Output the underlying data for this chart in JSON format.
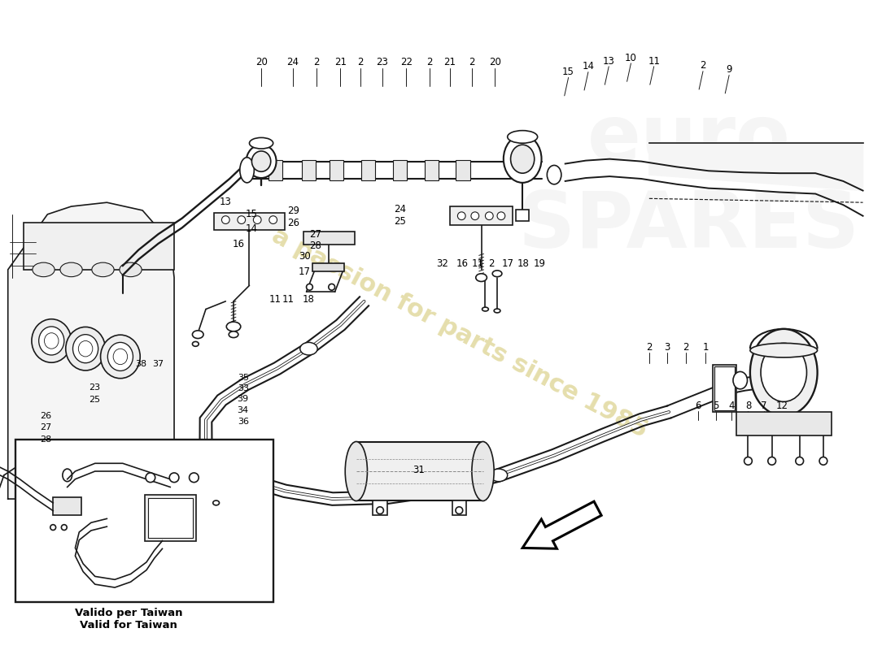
{
  "background_color": "#ffffff",
  "watermark_text": "a passion for parts since 1985",
  "watermark_color": "#d4c875",
  "inset_label_line1": "Valido per Taiwan",
  "inset_label_line2": "Valid for Taiwan",
  "line_color": "#1a1a1a",
  "label_fontsize": 8.5,
  "top_labels": [
    [
      330,
      68,
      "20"
    ],
    [
      370,
      68,
      "24"
    ],
    [
      400,
      68,
      "2"
    ],
    [
      430,
      68,
      "21"
    ],
    [
      455,
      68,
      "2"
    ],
    [
      483,
      68,
      "23"
    ],
    [
      513,
      68,
      "22"
    ],
    [
      543,
      68,
      "2"
    ],
    [
      568,
      68,
      "21"
    ],
    [
      596,
      68,
      "2"
    ],
    [
      625,
      68,
      "20"
    ]
  ],
  "right_top_labels": [
    [
      718,
      80,
      "15"
    ],
    [
      743,
      73,
      "14"
    ],
    [
      769,
      66,
      "13"
    ],
    [
      797,
      62,
      "10"
    ],
    [
      826,
      66,
      "11"
    ],
    [
      888,
      72,
      "2"
    ],
    [
      921,
      77,
      "9"
    ]
  ],
  "left_mid_labels": [
    [
      285,
      244,
      "13"
    ],
    [
      318,
      260,
      "15"
    ],
    [
      318,
      278,
      "14"
    ],
    [
      301,
      298,
      "16"
    ],
    [
      385,
      313,
      "30"
    ],
    [
      385,
      333,
      "17"
    ],
    [
      348,
      368,
      "11"
    ],
    [
      364,
      368,
      "11"
    ],
    [
      390,
      368,
      "18"
    ]
  ],
  "center_labels": [
    [
      371,
      256,
      "29"
    ],
    [
      371,
      271,
      "26"
    ],
    [
      398,
      285,
      "27"
    ],
    [
      398,
      300,
      "28"
    ]
  ],
  "right_center_labels": [
    [
      505,
      254,
      "24"
    ],
    [
      505,
      269,
      "25"
    ]
  ],
  "mid_right_labels": [
    [
      559,
      322,
      "32"
    ],
    [
      584,
      322,
      "16"
    ],
    [
      603,
      322,
      "11"
    ],
    [
      621,
      322,
      "2"
    ],
    [
      641,
      322,
      "17"
    ],
    [
      661,
      322,
      "18"
    ],
    [
      682,
      322,
      "19"
    ]
  ],
  "pump_labels_row1": [
    [
      820,
      428,
      "2"
    ],
    [
      843,
      428,
      "3"
    ],
    [
      866,
      428,
      "2"
    ],
    [
      891,
      428,
      "1"
    ]
  ],
  "pump_labels_row2": [
    [
      882,
      502,
      "6"
    ],
    [
      904,
      502,
      "5"
    ],
    [
      924,
      502,
      "4"
    ],
    [
      945,
      502,
      "8"
    ],
    [
      965,
      502,
      "7"
    ],
    [
      988,
      502,
      "12"
    ]
  ],
  "inset_labels": [
    [
      178,
      449,
      "38"
    ],
    [
      200,
      449,
      "37"
    ],
    [
      119,
      479,
      "23"
    ],
    [
      119,
      495,
      "25"
    ],
    [
      58,
      515,
      "26"
    ],
    [
      58,
      529,
      "27"
    ],
    [
      58,
      545,
      "28"
    ],
    [
      307,
      467,
      "35"
    ],
    [
      307,
      480,
      "33"
    ],
    [
      307,
      494,
      "39"
    ],
    [
      307,
      508,
      "34"
    ],
    [
      307,
      522,
      "36"
    ]
  ],
  "label_31": [
    529,
    583,
    "31"
  ]
}
